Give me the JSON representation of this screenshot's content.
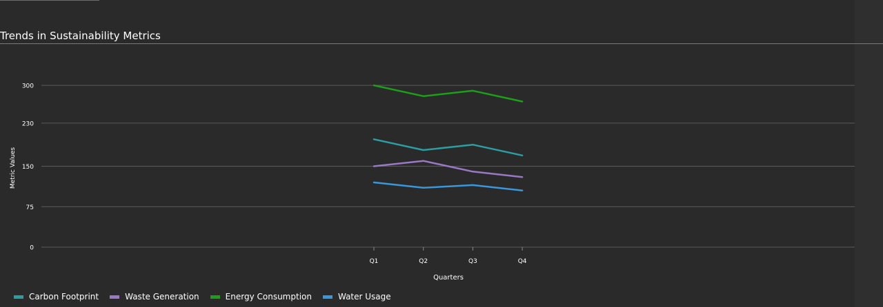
{
  "chart_data": {
    "type": "line",
    "title": "Trends in Sustainability Metrics",
    "xlabel": "Quarters",
    "ylabel": "Metric Values",
    "categories": [
      "Q1",
      "Q2",
      "Q3",
      "Q4"
    ],
    "ylim": [
      0,
      300
    ],
    "yticks": [
      0,
      75,
      150,
      230,
      300
    ],
    "grid": true,
    "legend_position": "bottom-left",
    "series": [
      {
        "name": "Carbon Footprint",
        "color": "#2c9ea2",
        "values": [
          200,
          180,
          190,
          170
        ]
      },
      {
        "name": "Waste Generation",
        "color": "#9b78c6",
        "values": [
          150,
          160,
          140,
          130
        ]
      },
      {
        "name": "Energy Consumption",
        "color": "#1e9f1a",
        "values": [
          300,
          280,
          290,
          270
        ]
      },
      {
        "name": "Water Usage",
        "color": "#3b97db",
        "values": [
          120,
          110,
          115,
          105
        ]
      }
    ]
  }
}
